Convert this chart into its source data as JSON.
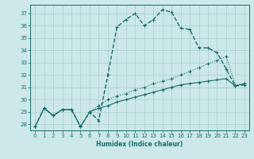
{
  "xlabel": "Humidex (Indice chaleur)",
  "background_color": "#cce8e8",
  "grid_color": "#aacccc",
  "line_color": "#1a6b6b",
  "xlim": [
    -0.5,
    23.5
  ],
  "ylim": [
    27.5,
    37.7
  ],
  "yticks": [
    28,
    29,
    30,
    31,
    32,
    33,
    34,
    35,
    36,
    37
  ],
  "xticks": [
    0,
    1,
    2,
    3,
    4,
    5,
    6,
    7,
    8,
    9,
    10,
    11,
    12,
    13,
    14,
    15,
    16,
    17,
    18,
    19,
    20,
    21,
    22,
    23
  ],
  "series": [
    {
      "x": [
        0,
        1,
        2,
        3,
        4,
        5,
        6,
        7,
        8,
        9,
        10,
        11,
        12,
        13,
        14,
        15,
        16,
        17,
        18,
        19,
        20,
        21,
        22,
        23
      ],
      "y": [
        27.8,
        29.3,
        28.7,
        29.2,
        29.2,
        27.8,
        29.0,
        28.3,
        32.0,
        35.9,
        36.5,
        37.0,
        36.0,
        36.5,
        37.3,
        37.1,
        35.8,
        35.7,
        34.2,
        34.2,
        33.8,
        32.5,
        31.1,
        31.2
      ],
      "linestyle": "--",
      "linewidth": 1.0,
      "marker": "+"
    },
    {
      "x": [
        0,
        1,
        2,
        3,
        4,
        5,
        6,
        7,
        8,
        9,
        10,
        11,
        12,
        13,
        14,
        15,
        16,
        17,
        18,
        19,
        20,
        21,
        22,
        23
      ],
      "y": [
        27.8,
        29.3,
        28.7,
        29.2,
        29.2,
        27.8,
        29.0,
        29.5,
        30.0,
        30.3,
        30.5,
        30.8,
        31.0,
        31.3,
        31.5,
        31.7,
        32.0,
        32.3,
        32.6,
        32.9,
        33.2,
        33.5,
        31.2,
        31.3
      ],
      "linestyle": ":",
      "linewidth": 0.8,
      "marker": "+"
    },
    {
      "x": [
        0,
        1,
        2,
        3,
        4,
        5,
        6,
        7,
        8,
        9,
        10,
        11,
        12,
        13,
        14,
        15,
        16,
        17,
        18,
        19,
        20,
        21,
        22,
        23
      ],
      "y": [
        27.8,
        29.3,
        28.7,
        29.2,
        29.2,
        27.8,
        29.0,
        29.3,
        29.5,
        29.8,
        30.0,
        30.2,
        30.4,
        30.6,
        30.8,
        31.0,
        31.2,
        31.3,
        31.4,
        31.5,
        31.6,
        31.7,
        31.1,
        31.3
      ],
      "linestyle": "-",
      "linewidth": 0.8,
      "marker": "+"
    }
  ]
}
